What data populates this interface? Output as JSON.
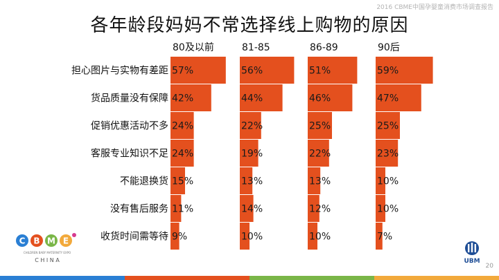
{
  "header_note": "2016 CBME中国孕婴童消费市场调查报告",
  "page_number": "20",
  "logos": {
    "left_mark": "CBME",
    "left_subtitle": "CHILDREN BABY MATERNITY EXPO",
    "left_bottom": "C H I N A",
    "right_mark": "UBM"
  },
  "colors": {
    "bar": "#E4501E",
    "stripe": [
      "#2A7FD4",
      "#E4501E",
      "#7AB648",
      "#F2A93B"
    ]
  },
  "chart_data": {
    "type": "bar",
    "orientation": "horizontal",
    "title": "各年龄段妈妈不常选择线上购物的原因",
    "categories": [
      "担心图片与实物有差距",
      "货品质量没有保障",
      "促销优惠活动不多",
      "客服专业知识不足",
      "不能退换货",
      "没有售后服务",
      "收货时间需等待"
    ],
    "series": [
      {
        "name": "80及以前",
        "values": [
          57,
          42,
          24,
          24,
          15,
          11,
          9
        ]
      },
      {
        "name": "81-85",
        "values": [
          56,
          44,
          22,
          19,
          13,
          14,
          10
        ]
      },
      {
        "name": "86-89",
        "values": [
          51,
          46,
          25,
          22,
          13,
          12,
          10
        ]
      },
      {
        "name": "90后",
        "values": [
          59,
          47,
          25,
          23,
          10,
          10,
          7
        ]
      }
    ],
    "value_suffix": "%",
    "layout": "small-multiples, one column per series",
    "grid": false,
    "legend": "column headers"
  }
}
